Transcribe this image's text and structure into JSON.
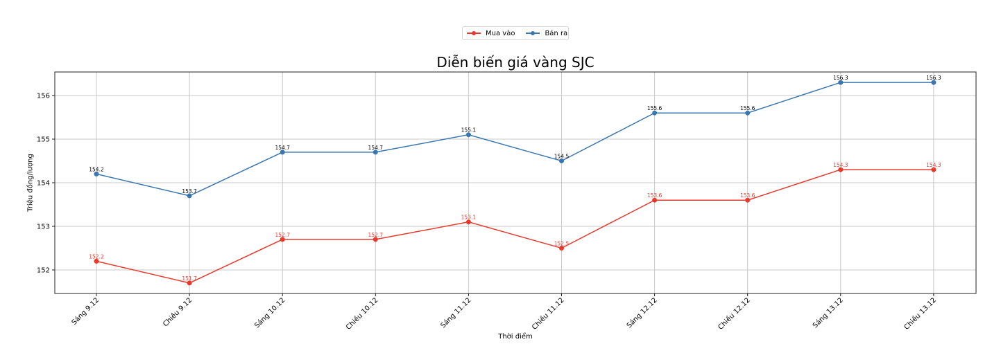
{
  "chart_data": {
    "type": "line",
    "title": "Diễn biến giá vàng SJC",
    "xlabel": "Thời điểm",
    "ylabel": "Triệu đồng/lượng",
    "categories": [
      "Sáng 9.12",
      "Chiều 9.12",
      "Sáng 10.12",
      "Chiều 10.12",
      "Sáng 11.12",
      "Chiều 11.12",
      "Sáng 12.12",
      "Chiều 12.12",
      "Sáng 13.12",
      "Chiều 13.12"
    ],
    "series": [
      {
        "name": "Mua vào",
        "color": "#e8392d",
        "label_color": "#e8392d",
        "values": [
          152.2,
          151.7,
          152.7,
          152.7,
          153.1,
          152.5,
          153.6,
          153.6,
          154.3,
          154.3
        ]
      },
      {
        "name": "Bán ra",
        "color": "#3a77b0",
        "label_color": "#000000",
        "values": [
          154.2,
          153.7,
          154.7,
          154.7,
          155.1,
          154.5,
          155.6,
          155.6,
          156.3,
          156.3
        ]
      }
    ],
    "yticks": [
      152,
      153,
      154,
      155,
      156
    ],
    "ylim": [
      151.45,
      156.55
    ],
    "grid": true,
    "legend_position": "upper center (outside, above title)",
    "xtick_rotation": 45
  }
}
